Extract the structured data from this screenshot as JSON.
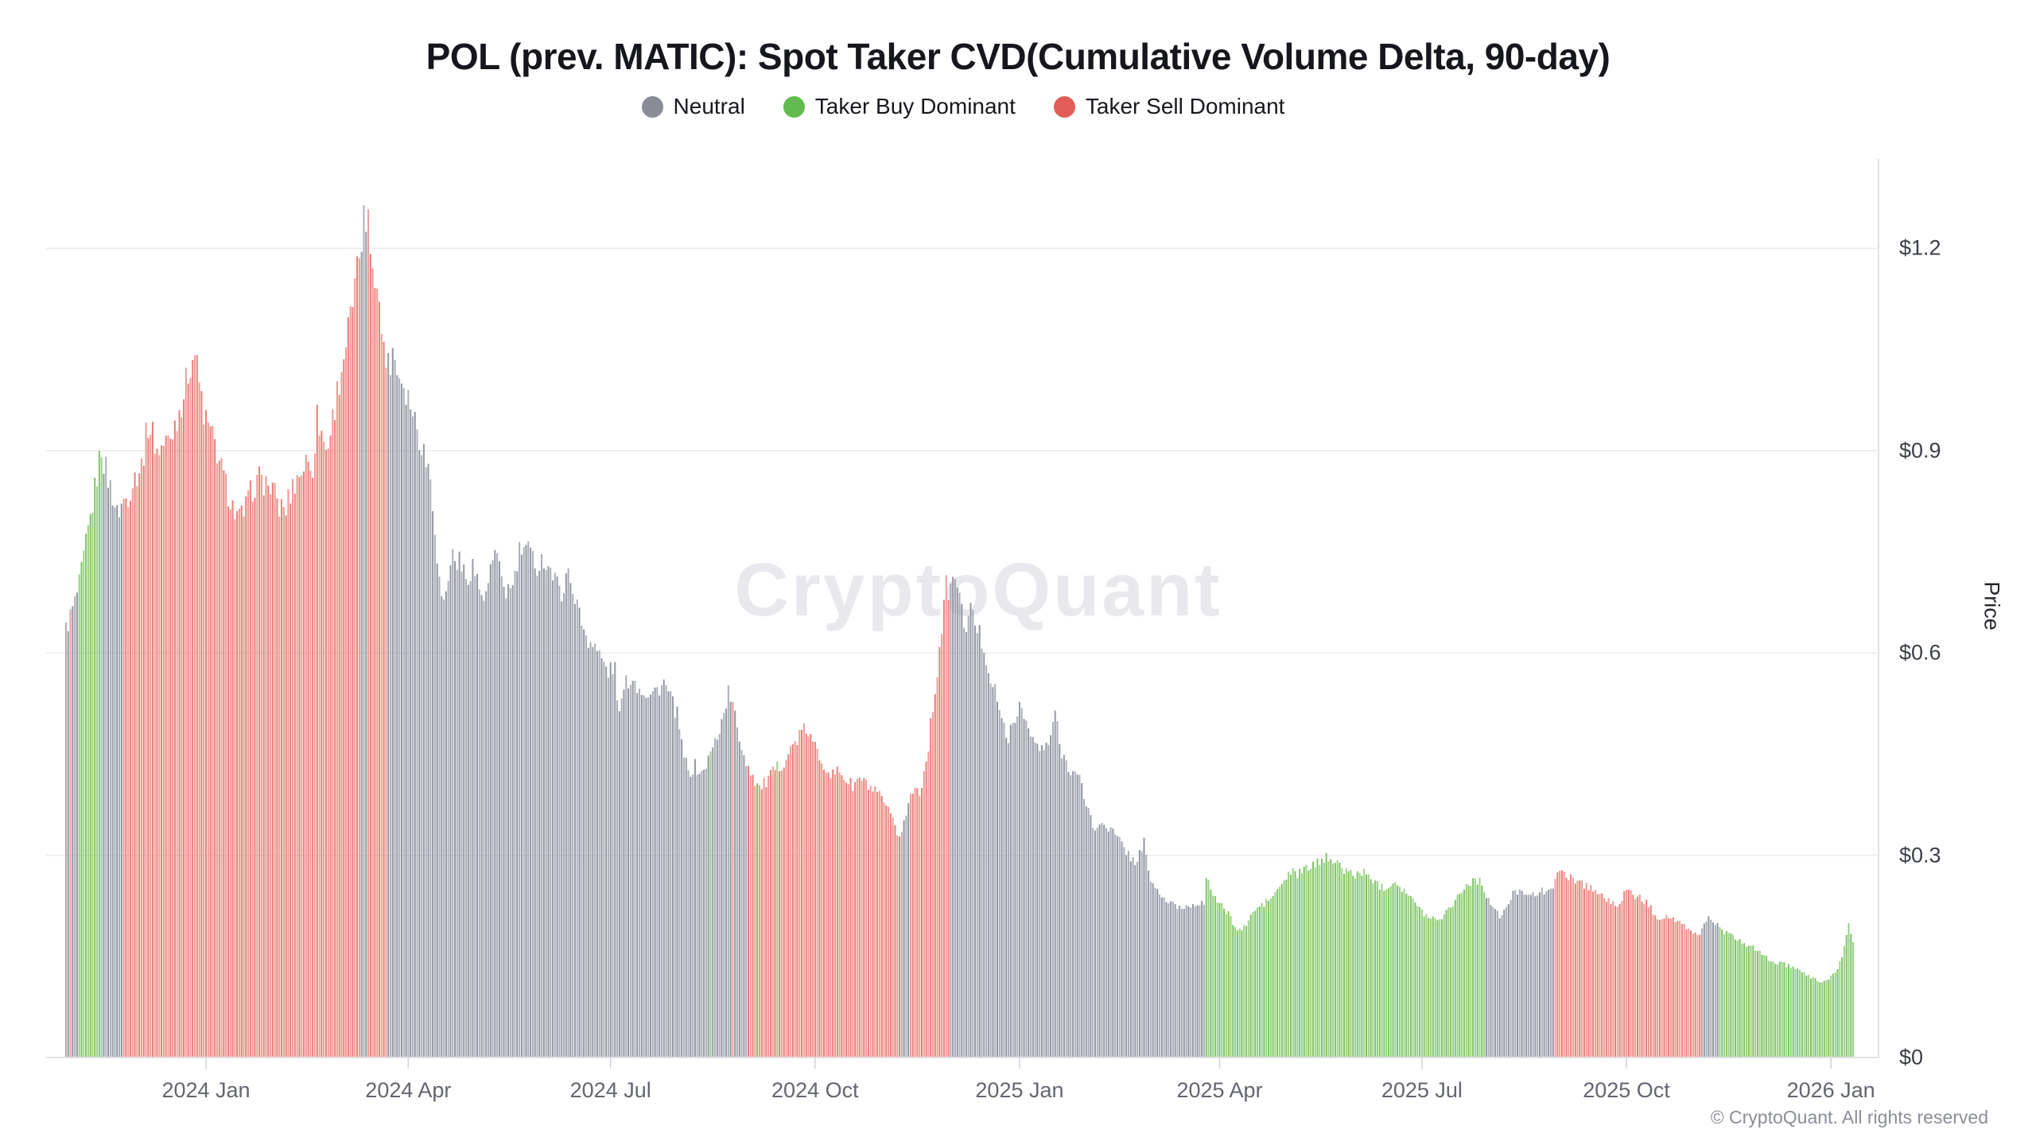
{
  "title": "POL (prev. MATIC): Spot Taker CVD(Cumulative Volume Delta, 90-day)",
  "legend": [
    {
      "key": "neutral",
      "label": "Neutral",
      "color": "#898b95"
    },
    {
      "key": "buy",
      "label": "Taker Buy Dominant",
      "color": "#62bb4f"
    },
    {
      "key": "sell",
      "label": "Taker Sell Dominant",
      "color": "#e35d58"
    }
  ],
  "watermark": "CryptoQuant",
  "copyright": "© CryptoQuant. All rights reserved",
  "y_axis": {
    "label": "Price",
    "ticks": [
      "$0",
      "$0.3",
      "$0.6",
      "$0.9",
      "$1.2"
    ],
    "values": [
      0,
      0.3,
      0.6,
      0.9,
      1.2
    ]
  },
  "x_axis": {
    "ticks": [
      {
        "label": "2024 Jan",
        "date": "2024-01-01"
      },
      {
        "label": "2024 Apr",
        "date": "2024-04-01"
      },
      {
        "label": "2024 Jul",
        "date": "2024-07-01"
      },
      {
        "label": "2024 Oct",
        "date": "2024-10-01"
      },
      {
        "label": "2025 Jan",
        "date": "2025-01-01"
      },
      {
        "label": "2025 Apr",
        "date": "2025-04-01"
      },
      {
        "label": "2025 Jul",
        "date": "2025-07-01"
      },
      {
        "label": "2025 Oct",
        "date": "2025-10-01"
      },
      {
        "label": "2026 Jan",
        "date": "2026-01-01"
      }
    ]
  },
  "chart_data": {
    "type": "bar",
    "title": "POL (prev. MATIC): Spot Taker CVD(Cumulative Volume Delta, 90-day)",
    "xlabel": "",
    "ylabel": "Price",
    "ylim": [
      0,
      1.33
    ],
    "start_date": "2023-10-30",
    "end_date": "2026-01-11",
    "series_unit": "USD price per POL, daily bars colored by 90-day spot taker CVD regime",
    "categories_legend": {
      "neutral": "Neutral",
      "buy": "Taker Buy Dominant",
      "sell": "Taker Sell Dominant"
    },
    "colors": {
      "neutral": "#9094a0",
      "buy": "#79c35f",
      "sell": "#e97a72"
    },
    "anchors": [
      [
        "2023-10-30",
        0.635
      ],
      [
        "2023-11-01",
        0.655
      ],
      [
        "2023-11-03",
        0.675
      ],
      [
        "2023-11-05",
        0.7
      ],
      [
        "2023-11-08",
        0.76
      ],
      [
        "2023-11-11",
        0.82
      ],
      [
        "2023-11-14",
        0.885
      ],
      [
        "2023-11-15",
        0.905
      ],
      [
        "2023-11-16",
        0.885
      ],
      [
        "2023-11-18",
        0.858
      ],
      [
        "2023-11-20",
        0.835
      ],
      [
        "2023-11-22",
        0.805
      ],
      [
        "2023-11-24",
        0.82
      ],
      [
        "2023-11-27",
        0.835
      ],
      [
        "2023-11-30",
        0.862
      ],
      [
        "2023-12-03",
        0.878
      ],
      [
        "2023-12-06",
        0.94
      ],
      [
        "2023-12-08",
        0.925
      ],
      [
        "2023-12-10",
        0.9
      ],
      [
        "2023-12-13",
        0.908
      ],
      [
        "2023-12-16",
        0.92
      ],
      [
        "2023-12-19",
        0.95
      ],
      [
        "2023-12-22",
        0.985
      ],
      [
        "2023-12-25",
        1.03
      ],
      [
        "2023-12-27",
        1.045
      ],
      [
        "2023-12-29",
        1.0
      ],
      [
        "2023-12-31",
        0.955
      ],
      [
        "2024-01-02",
        0.935
      ],
      [
        "2024-01-05",
        0.91
      ],
      [
        "2024-01-08",
        0.872
      ],
      [
        "2024-01-11",
        0.838
      ],
      [
        "2024-01-14",
        0.808
      ],
      [
        "2024-01-16",
        0.798
      ],
      [
        "2024-01-19",
        0.815
      ],
      [
        "2024-01-22",
        0.845
      ],
      [
        "2024-01-25",
        0.858
      ],
      [
        "2024-01-28",
        0.852
      ],
      [
        "2024-01-31",
        0.842
      ],
      [
        "2024-02-03",
        0.815
      ],
      [
        "2024-02-06",
        0.815
      ],
      [
        "2024-02-09",
        0.848
      ],
      [
        "2024-02-12",
        0.865
      ],
      [
        "2024-02-15",
        0.883
      ],
      [
        "2024-02-18",
        0.878
      ],
      [
        "2024-02-20",
        0.95
      ],
      [
        "2024-02-22",
        0.928
      ],
      [
        "2024-02-24",
        0.9
      ],
      [
        "2024-02-26",
        0.928
      ],
      [
        "2024-02-28",
        0.968
      ],
      [
        "2024-03-01",
        1.005
      ],
      [
        "2024-03-04",
        1.06
      ],
      [
        "2024-03-07",
        1.115
      ],
      [
        "2024-03-09",
        1.16
      ],
      [
        "2024-03-11",
        1.215
      ],
      [
        "2024-03-12",
        1.245
      ],
      [
        "2024-03-13",
        1.2
      ],
      [
        "2024-03-14",
        1.27
      ],
      [
        "2024-03-15",
        1.205
      ],
      [
        "2024-03-17",
        1.17
      ],
      [
        "2024-03-19",
        1.105
      ],
      [
        "2024-03-21",
        1.06
      ],
      [
        "2024-03-23",
        1.025
      ],
      [
        "2024-03-25",
        1.05
      ],
      [
        "2024-03-27",
        1.022
      ],
      [
        "2024-03-30",
        1.0
      ],
      [
        "2024-04-02",
        0.972
      ],
      [
        "2024-04-05",
        0.935
      ],
      [
        "2024-04-08",
        0.9
      ],
      [
        "2024-04-11",
        0.862
      ],
      [
        "2024-04-13",
        0.79
      ],
      [
        "2024-04-15",
        0.705
      ],
      [
        "2024-04-17",
        0.672
      ],
      [
        "2024-04-19",
        0.715
      ],
      [
        "2024-04-21",
        0.745
      ],
      [
        "2024-04-24",
        0.735
      ],
      [
        "2024-04-27",
        0.71
      ],
      [
        "2024-04-30",
        0.732
      ],
      [
        "2024-05-03",
        0.695
      ],
      [
        "2024-05-06",
        0.678
      ],
      [
        "2024-05-08",
        0.728
      ],
      [
        "2024-05-10",
        0.742
      ],
      [
        "2024-05-13",
        0.712
      ],
      [
        "2024-05-15",
        0.692
      ],
      [
        "2024-05-18",
        0.697
      ],
      [
        "2024-05-21",
        0.748
      ],
      [
        "2024-05-23",
        0.756
      ],
      [
        "2024-05-26",
        0.745
      ],
      [
        "2024-05-29",
        0.73
      ],
      [
        "2024-06-01",
        0.74
      ],
      [
        "2024-06-04",
        0.724
      ],
      [
        "2024-06-07",
        0.7
      ],
      [
        "2024-06-09",
        0.69
      ],
      [
        "2024-06-11",
        0.718
      ],
      [
        "2024-06-14",
        0.7
      ],
      [
        "2024-06-17",
        0.656
      ],
      [
        "2024-06-20",
        0.626
      ],
      [
        "2024-06-24",
        0.61
      ],
      [
        "2024-06-27",
        0.59
      ],
      [
        "2024-06-30",
        0.572
      ],
      [
        "2024-07-03",
        0.578
      ],
      [
        "2024-07-05",
        0.505
      ],
      [
        "2024-07-07",
        0.548
      ],
      [
        "2024-07-10",
        0.565
      ],
      [
        "2024-07-13",
        0.552
      ],
      [
        "2024-07-16",
        0.545
      ],
      [
        "2024-07-19",
        0.538
      ],
      [
        "2024-07-22",
        0.546
      ],
      [
        "2024-07-25",
        0.556
      ],
      [
        "2024-07-28",
        0.532
      ],
      [
        "2024-07-31",
        0.508
      ],
      [
        "2024-08-02",
        0.462
      ],
      [
        "2024-08-05",
        0.422
      ],
      [
        "2024-08-08",
        0.432
      ],
      [
        "2024-08-11",
        0.42
      ],
      [
        "2024-08-14",
        0.442
      ],
      [
        "2024-08-17",
        0.468
      ],
      [
        "2024-08-20",
        0.498
      ],
      [
        "2024-08-23",
        0.542
      ],
      [
        "2024-08-25",
        0.522
      ],
      [
        "2024-08-27",
        0.488
      ],
      [
        "2024-08-29",
        0.462
      ],
      [
        "2024-08-31",
        0.44
      ],
      [
        "2024-09-03",
        0.418
      ],
      [
        "2024-09-06",
        0.4
      ],
      [
        "2024-09-09",
        0.408
      ],
      [
        "2024-09-12",
        0.422
      ],
      [
        "2024-09-15",
        0.432
      ],
      [
        "2024-09-18",
        0.445
      ],
      [
        "2024-09-21",
        0.462
      ],
      [
        "2024-09-24",
        0.478
      ],
      [
        "2024-09-27",
        0.487
      ],
      [
        "2024-09-30",
        0.466
      ],
      [
        "2024-10-03",
        0.447
      ],
      [
        "2024-10-06",
        0.432
      ],
      [
        "2024-10-09",
        0.418
      ],
      [
        "2024-10-12",
        0.426
      ],
      [
        "2024-10-15",
        0.412
      ],
      [
        "2024-10-18",
        0.402
      ],
      [
        "2024-10-21",
        0.414
      ],
      [
        "2024-10-24",
        0.405
      ],
      [
        "2024-10-27",
        0.396
      ],
      [
        "2024-10-30",
        0.386
      ],
      [
        "2024-11-02",
        0.372
      ],
      [
        "2024-11-05",
        0.348
      ],
      [
        "2024-11-07",
        0.328
      ],
      [
        "2024-11-09",
        0.338
      ],
      [
        "2024-11-11",
        0.362
      ],
      [
        "2024-11-13",
        0.388
      ],
      [
        "2024-11-15",
        0.4
      ],
      [
        "2024-11-17",
        0.396
      ],
      [
        "2024-11-19",
        0.422
      ],
      [
        "2024-11-21",
        0.465
      ],
      [
        "2024-11-23",
        0.518
      ],
      [
        "2024-11-25",
        0.575
      ],
      [
        "2024-11-27",
        0.638
      ],
      [
        "2024-11-29",
        0.698
      ],
      [
        "2024-12-01",
        0.692
      ],
      [
        "2024-12-03",
        0.715
      ],
      [
        "2024-12-04",
        0.705
      ],
      [
        "2024-12-06",
        0.658
      ],
      [
        "2024-12-08",
        0.642
      ],
      [
        "2024-12-10",
        0.662
      ],
      [
        "2024-12-12",
        0.645
      ],
      [
        "2024-12-14",
        0.628
      ],
      [
        "2024-12-16",
        0.608
      ],
      [
        "2024-12-18",
        0.578
      ],
      [
        "2024-12-20",
        0.548
      ],
      [
        "2024-12-22",
        0.535
      ],
      [
        "2024-12-24",
        0.495
      ],
      [
        "2024-12-27",
        0.478
      ],
      [
        "2024-12-30",
        0.492
      ],
      [
        "2025-01-01",
        0.528
      ],
      [
        "2025-01-03",
        0.515
      ],
      [
        "2025-01-05",
        0.482
      ],
      [
        "2025-01-08",
        0.466
      ],
      [
        "2025-01-11",
        0.455
      ],
      [
        "2025-01-14",
        0.462
      ],
      [
        "2025-01-17",
        0.515
      ],
      [
        "2025-01-19",
        0.462
      ],
      [
        "2025-01-22",
        0.438
      ],
      [
        "2025-01-25",
        0.425
      ],
      [
        "2025-01-28",
        0.412
      ],
      [
        "2025-01-30",
        0.388
      ],
      [
        "2025-02-02",
        0.358
      ],
      [
        "2025-02-04",
        0.332
      ],
      [
        "2025-02-07",
        0.352
      ],
      [
        "2025-02-10",
        0.342
      ],
      [
        "2025-02-13",
        0.33
      ],
      [
        "2025-02-16",
        0.316
      ],
      [
        "2025-02-19",
        0.302
      ],
      [
        "2025-02-22",
        0.288
      ],
      [
        "2025-02-26",
        0.32
      ],
      [
        "2025-02-28",
        0.272
      ],
      [
        "2025-03-03",
        0.252
      ],
      [
        "2025-03-06",
        0.238
      ],
      [
        "2025-03-10",
        0.228
      ],
      [
        "2025-03-14",
        0.222
      ],
      [
        "2025-03-18",
        0.225
      ],
      [
        "2025-03-22",
        0.23
      ],
      [
        "2025-03-25",
        0.228
      ],
      [
        "2025-03-26",
        0.262
      ],
      [
        "2025-03-28",
        0.252
      ],
      [
        "2025-03-31",
        0.232
      ],
      [
        "2025-04-03",
        0.22
      ],
      [
        "2025-04-06",
        0.208
      ],
      [
        "2025-04-09",
        0.188
      ],
      [
        "2025-04-12",
        0.192
      ],
      [
        "2025-04-15",
        0.21
      ],
      [
        "2025-04-18",
        0.222
      ],
      [
        "2025-04-21",
        0.228
      ],
      [
        "2025-04-24",
        0.236
      ],
      [
        "2025-04-27",
        0.248
      ],
      [
        "2025-04-30",
        0.262
      ],
      [
        "2025-05-03",
        0.275
      ],
      [
        "2025-05-06",
        0.272
      ],
      [
        "2025-05-09",
        0.278
      ],
      [
        "2025-05-12",
        0.284
      ],
      [
        "2025-05-15",
        0.288
      ],
      [
        "2025-05-18",
        0.295
      ],
      [
        "2025-05-19",
        0.31
      ],
      [
        "2025-05-20",
        0.296
      ],
      [
        "2025-05-23",
        0.288
      ],
      [
        "2025-05-26",
        0.281
      ],
      [
        "2025-05-29",
        0.276
      ],
      [
        "2025-06-01",
        0.27
      ],
      [
        "2025-06-04",
        0.276
      ],
      [
        "2025-06-07",
        0.268
      ],
      [
        "2025-06-10",
        0.262
      ],
      [
        "2025-06-13",
        0.252
      ],
      [
        "2025-06-16",
        0.256
      ],
      [
        "2025-06-19",
        0.262
      ],
      [
        "2025-06-22",
        0.252
      ],
      [
        "2025-06-25",
        0.242
      ],
      [
        "2025-06-28",
        0.228
      ],
      [
        "2025-07-01",
        0.216
      ],
      [
        "2025-07-04",
        0.21
      ],
      [
        "2025-07-07",
        0.205
      ],
      [
        "2025-07-10",
        0.21
      ],
      [
        "2025-07-13",
        0.22
      ],
      [
        "2025-07-16",
        0.235
      ],
      [
        "2025-07-19",
        0.248
      ],
      [
        "2025-07-22",
        0.258
      ],
      [
        "2025-07-25",
        0.265
      ],
      [
        "2025-07-28",
        0.258
      ],
      [
        "2025-07-30",
        0.242
      ],
      [
        "2025-08-02",
        0.222
      ],
      [
        "2025-08-05",
        0.208
      ],
      [
        "2025-08-08",
        0.222
      ],
      [
        "2025-08-11",
        0.242
      ],
      [
        "2025-08-14",
        0.25
      ],
      [
        "2025-08-17",
        0.246
      ],
      [
        "2025-08-20",
        0.24
      ],
      [
        "2025-08-23",
        0.244
      ],
      [
        "2025-08-26",
        0.25
      ],
      [
        "2025-08-29",
        0.256
      ],
      [
        "2025-08-31",
        0.268
      ],
      [
        "2025-09-02",
        0.275
      ],
      [
        "2025-09-05",
        0.27
      ],
      [
        "2025-09-08",
        0.264
      ],
      [
        "2025-09-11",
        0.258
      ],
      [
        "2025-09-14",
        0.254
      ],
      [
        "2025-09-17",
        0.248
      ],
      [
        "2025-09-20",
        0.24
      ],
      [
        "2025-09-23",
        0.232
      ],
      [
        "2025-09-26",
        0.224
      ],
      [
        "2025-09-29",
        0.238
      ],
      [
        "2025-10-02",
        0.246
      ],
      [
        "2025-10-05",
        0.24
      ],
      [
        "2025-10-08",
        0.235
      ],
      [
        "2025-10-11",
        0.226
      ],
      [
        "2025-10-14",
        0.212
      ],
      [
        "2025-10-17",
        0.206
      ],
      [
        "2025-10-20",
        0.21
      ],
      [
        "2025-10-23",
        0.202
      ],
      [
        "2025-10-26",
        0.196
      ],
      [
        "2025-10-29",
        0.19
      ],
      [
        "2025-11-01",
        0.184
      ],
      [
        "2025-11-03",
        0.18
      ],
      [
        "2025-11-05",
        0.202
      ],
      [
        "2025-11-08",
        0.208
      ],
      [
        "2025-11-11",
        0.196
      ],
      [
        "2025-11-13",
        0.188
      ],
      [
        "2025-11-16",
        0.182
      ],
      [
        "2025-11-19",
        0.176
      ],
      [
        "2025-11-22",
        0.171
      ],
      [
        "2025-11-25",
        0.166
      ],
      [
        "2025-11-28",
        0.161
      ],
      [
        "2025-12-01",
        0.152
      ],
      [
        "2025-12-04",
        0.146
      ],
      [
        "2025-12-07",
        0.141
      ],
      [
        "2025-12-10",
        0.139
      ],
      [
        "2025-12-13",
        0.136
      ],
      [
        "2025-12-16",
        0.131
      ],
      [
        "2025-12-19",
        0.126
      ],
      [
        "2025-12-22",
        0.121
      ],
      [
        "2025-12-25",
        0.116
      ],
      [
        "2025-12-28",
        0.112
      ],
      [
        "2025-12-31",
        0.117
      ],
      [
        "2026-01-03",
        0.126
      ],
      [
        "2026-01-05",
        0.14
      ],
      [
        "2026-01-07",
        0.162
      ],
      [
        "2026-01-09",
        0.198
      ],
      [
        "2026-01-10",
        0.186
      ],
      [
        "2026-01-11",
        0.172
      ]
    ],
    "segments": [
      [
        "2023-10-30",
        "2023-11-04",
        "neutral"
      ],
      [
        "2023-11-05",
        "2023-11-15",
        "buy"
      ],
      [
        "2023-11-16",
        "2023-11-24",
        "neutral"
      ],
      [
        "2023-11-25",
        "2024-03-10",
        "sell"
      ],
      [
        "2024-03-11",
        "2024-03-13",
        "neutral"
      ],
      [
        "2024-03-14",
        "2024-03-22",
        "sell"
      ],
      [
        "2024-03-23",
        "2024-08-31",
        "neutral"
      ],
      [
        "2024-09-01",
        "2024-11-08",
        "sell"
      ],
      [
        "2024-11-09",
        "2024-11-12",
        "neutral"
      ],
      [
        "2024-11-13",
        "2024-11-30",
        "sell"
      ],
      [
        "2024-12-01",
        "2025-03-25",
        "neutral"
      ],
      [
        "2025-03-26",
        "2025-07-29",
        "buy"
      ],
      [
        "2025-07-30",
        "2025-08-29",
        "neutral"
      ],
      [
        "2025-08-30",
        "2025-11-03",
        "sell"
      ],
      [
        "2025-11-04",
        "2025-11-11",
        "neutral"
      ],
      [
        "2025-11-12",
        "2026-01-11",
        "buy"
      ]
    ],
    "overrides": {
      "2023-11-01": "sell",
      "2024-08-15": "buy",
      "2024-08-25": "sell",
      "2024-09-05": "buy",
      "2024-09-14": "buy"
    }
  }
}
